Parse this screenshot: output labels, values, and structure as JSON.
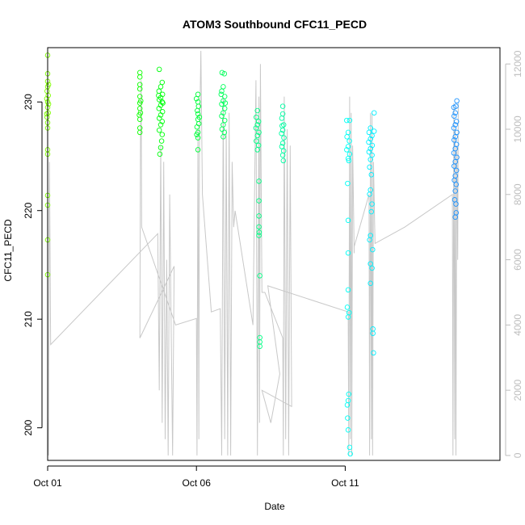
{
  "chart_data": {
    "type": "scatter",
    "title": "ATOM3 Southbound CFC11_PECD",
    "xlabel": "Date",
    "ylabel": "CFC11_PECD",
    "x_axis": {
      "range_days": [
        0.0,
        15.2
      ],
      "ticks": [
        {
          "value": 0,
          "label": "Oct 01"
        },
        {
          "value": 5,
          "label": "Oct 06"
        },
        {
          "value": 10,
          "label": "Oct 11"
        }
      ]
    },
    "y_axis": {
      "range": [
        197.0,
        235.0
      ],
      "ticks": [
        200,
        210,
        220,
        230
      ]
    },
    "y2_axis": {
      "range": [
        -150,
        12500
      ],
      "ticks": [
        0,
        2000,
        4000,
        6000,
        8000,
        10000,
        12000
      ],
      "color": "#bdbdbd"
    },
    "grid": false,
    "colors": {
      "altitude_line": "#c8c8c8",
      "point_scale": [
        "#7fff00",
        "#00ff00",
        "#00ff7f",
        "#00ffff",
        "#1e90ff"
      ]
    },
    "clusters": [
      {
        "day": 0.0,
        "points": [
          [
            0.0,
            234.3
          ],
          [
            0.0,
            232.6
          ],
          [
            0.0,
            231.9
          ],
          [
            0.0,
            231.4
          ],
          [
            -0.02,
            231.0
          ],
          [
            0.02,
            230.6
          ],
          [
            0.0,
            230.0
          ],
          [
            0.0,
            229.5
          ],
          [
            0.02,
            229.0
          ],
          [
            -0.02,
            228.6
          ],
          [
            0.0,
            228.1
          ],
          [
            0.0,
            227.6
          ],
          [
            0.0,
            225.6
          ],
          [
            0.0,
            225.2
          ],
          [
            0.0,
            221.4
          ],
          [
            0.0,
            220.5
          ],
          [
            0.0,
            217.3
          ],
          [
            0.0,
            214.1
          ],
          [
            0.03,
            231.6
          ],
          [
            0.03,
            229.8
          ],
          [
            -0.03,
            230.3
          ],
          [
            -0.03,
            228.9
          ]
        ]
      },
      {
        "day": 3.1,
        "points": [
          [
            0.0,
            232.7
          ],
          [
            0.0,
            232.3
          ],
          [
            0.0,
            231.6
          ],
          [
            0.0,
            231.2
          ],
          [
            0.0,
            230.5
          ],
          [
            0.0,
            229.9
          ],
          [
            0.0,
            229.4
          ],
          [
            0.02,
            229.0
          ],
          [
            -0.02,
            228.8
          ],
          [
            0.0,
            228.4
          ],
          [
            0.0,
            227.6
          ],
          [
            0.0,
            227.2
          ],
          [
            0.03,
            230.1
          ]
        ]
      },
      {
        "day": 3.8,
        "points": [
          [
            -0.05,
            233.0
          ],
          [
            0.05,
            231.8
          ],
          [
            0.0,
            231.4
          ],
          [
            -0.06,
            231.0
          ],
          [
            0.06,
            230.7
          ],
          [
            0.0,
            230.4
          ],
          [
            -0.05,
            230.2
          ],
          [
            0.05,
            230.0
          ],
          [
            0.0,
            229.7
          ],
          [
            -0.06,
            229.4
          ],
          [
            0.06,
            229.1
          ],
          [
            0.0,
            228.8
          ],
          [
            -0.05,
            228.5
          ],
          [
            0.05,
            228.2
          ],
          [
            0.0,
            227.9
          ],
          [
            -0.05,
            227.4
          ],
          [
            0.05,
            227.0
          ],
          [
            0.0,
            225.8
          ],
          [
            -0.03,
            225.2
          ],
          [
            0.03,
            226.4
          ],
          [
            0.07,
            229.9
          ],
          [
            -0.07,
            230.6
          ]
        ]
      },
      {
        "day": 5.05,
        "points": [
          [
            0.0,
            230.7
          ],
          [
            0.0,
            230.0
          ],
          [
            0.02,
            229.6
          ],
          [
            -0.02,
            229.2
          ],
          [
            0.0,
            228.9
          ],
          [
            0.0,
            228.4
          ],
          [
            0.03,
            228.0
          ],
          [
            -0.03,
            227.7
          ],
          [
            0.0,
            227.2
          ],
          [
            0.0,
            226.7
          ],
          [
            0.0,
            225.6
          ],
          [
            -0.05,
            230.3
          ],
          [
            0.05,
            228.6
          ],
          [
            -0.04,
            227.0
          ]
        ]
      },
      {
        "day": 5.9,
        "points": [
          [
            -0.04,
            232.7
          ],
          [
            0.04,
            232.6
          ],
          [
            0.0,
            231.4
          ],
          [
            -0.05,
            231.0
          ],
          [
            0.05,
            230.5
          ],
          [
            0.0,
            230.1
          ],
          [
            -0.05,
            229.8
          ],
          [
            0.05,
            229.4
          ],
          [
            0.0,
            229.0
          ],
          [
            -0.05,
            228.7
          ],
          [
            0.05,
            228.3
          ],
          [
            0.0,
            227.9
          ],
          [
            -0.04,
            227.5
          ],
          [
            0.04,
            227.2
          ],
          [
            0.0,
            226.8
          ],
          [
            0.07,
            229.9
          ],
          [
            -0.07,
            230.7
          ]
        ]
      },
      {
        "day": 7.05,
        "points": [
          [
            0.0,
            229.2
          ],
          [
            -0.04,
            228.6
          ],
          [
            0.04,
            228.2
          ],
          [
            0.0,
            227.9
          ],
          [
            -0.05,
            227.6
          ],
          [
            0.05,
            227.2
          ],
          [
            0.0,
            226.9
          ],
          [
            -0.04,
            226.4
          ],
          [
            0.04,
            226.0
          ],
          [
            0.0,
            225.6
          ],
          [
            0.05,
            222.7
          ],
          [
            0.05,
            220.9
          ],
          [
            0.05,
            219.5
          ],
          [
            0.05,
            218.5
          ],
          [
            0.06,
            218.0
          ],
          [
            0.05,
            217.7
          ],
          [
            0.08,
            214.0
          ],
          [
            0.08,
            208.3
          ],
          [
            0.08,
            207.9
          ],
          [
            0.08,
            207.5
          ]
        ]
      },
      {
        "day": 7.9,
        "points": [
          [
            0.0,
            229.6
          ],
          [
            0.0,
            228.9
          ],
          [
            -0.03,
            228.5
          ],
          [
            0.03,
            227.9
          ],
          [
            0.0,
            227.4
          ],
          [
            -0.04,
            227.1
          ],
          [
            0.04,
            226.7
          ],
          [
            0.0,
            226.2
          ],
          [
            -0.03,
            225.9
          ],
          [
            0.03,
            225.5
          ],
          [
            0.0,
            225.1
          ],
          [
            0.02,
            224.6
          ],
          [
            -0.02,
            227.8
          ]
        ]
      },
      {
        "day": 10.1,
        "points": [
          [
            -0.05,
            228.3
          ],
          [
            0.05,
            228.3
          ],
          [
            0.0,
            227.2
          ],
          [
            -0.04,
            226.8
          ],
          [
            0.04,
            226.4
          ],
          [
            0.0,
            225.9
          ],
          [
            -0.05,
            225.6
          ],
          [
            0.05,
            225.2
          ],
          [
            0.0,
            224.8
          ],
          [
            0.02,
            224.6
          ],
          [
            -0.02,
            222.5
          ],
          [
            0.0,
            219.1
          ],
          [
            0.0,
            216.1
          ],
          [
            0.0,
            212.7
          ],
          [
            -0.03,
            211.1
          ],
          [
            0.03,
            210.6
          ],
          [
            0.0,
            210.2
          ],
          [
            0.02,
            203.1
          ],
          [
            0.0,
            202.5
          ],
          [
            -0.03,
            202.1
          ],
          [
            -0.02,
            200.9
          ],
          [
            0.0,
            199.8
          ],
          [
            0.05,
            198.2
          ],
          [
            0.07,
            197.6
          ]
        ]
      },
      {
        "day": 10.85,
        "points": [
          [
            0.0,
            227.6
          ],
          [
            -0.05,
            227.2
          ],
          [
            0.05,
            226.9
          ],
          [
            0.0,
            226.6
          ],
          [
            -0.06,
            226.3
          ],
          [
            0.06,
            226.0
          ],
          [
            0.0,
            225.7
          ],
          [
            -0.05,
            225.4
          ],
          [
            0.05,
            225.1
          ],
          [
            0.0,
            224.7
          ],
          [
            -0.03,
            224.0
          ],
          [
            0.03,
            223.3
          ],
          [
            0.0,
            221.9
          ],
          [
            -0.03,
            221.5
          ],
          [
            0.05,
            220.6
          ],
          [
            0.03,
            219.9
          ],
          [
            0.0,
            217.7
          ],
          [
            -0.03,
            217.3
          ],
          [
            0.07,
            216.4
          ],
          [
            0.0,
            215.1
          ],
          [
            0.05,
            214.7
          ],
          [
            0.0,
            213.3
          ],
          [
            0.08,
            209.1
          ],
          [
            0.08,
            208.7
          ],
          [
            0.1,
            206.9
          ],
          [
            0.12,
            229.0
          ],
          [
            0.12,
            227.3
          ]
        ]
      },
      {
        "day": 13.7,
        "points": [
          [
            -0.05,
            229.5
          ],
          [
            0.05,
            230.1
          ],
          [
            0.02,
            229.6
          ],
          [
            0.0,
            229.0
          ],
          [
            -0.04,
            228.7
          ],
          [
            0.04,
            228.2
          ],
          [
            0.0,
            227.9
          ],
          [
            -0.05,
            227.6
          ],
          [
            0.05,
            227.2
          ],
          [
            0.0,
            226.8
          ],
          [
            -0.04,
            226.5
          ],
          [
            0.04,
            226.1
          ],
          [
            0.0,
            225.7
          ],
          [
            -0.05,
            225.3
          ],
          [
            0.05,
            224.9
          ],
          [
            0.0,
            224.5
          ],
          [
            -0.04,
            224.1
          ],
          [
            0.04,
            223.7
          ],
          [
            0.0,
            223.2
          ],
          [
            -0.03,
            222.8
          ],
          [
            0.03,
            222.4
          ],
          [
            0.0,
            221.8
          ],
          [
            -0.02,
            221.0
          ],
          [
            0.02,
            220.6
          ],
          [
            0.0,
            219.4
          ],
          [
            0.03,
            219.8
          ]
        ]
      }
    ],
    "altitude_path": [
      [
        0.0,
        1200
      ],
      [
        0.03,
        0
      ],
      [
        0.06,
        9000
      ],
      [
        0.1,
        3400
      ],
      [
        3.7,
        6800
      ],
      [
        3.75,
        2000
      ],
      [
        3.8,
        9500
      ],
      [
        3.85,
        1000
      ],
      [
        3.9,
        9000
      ],
      [
        3.95,
        500
      ],
      [
        4.0,
        6000
      ],
      [
        4.05,
        0
      ],
      [
        4.1,
        8000
      ],
      [
        4.2,
        0
      ],
      [
        4.25,
        5800
      ],
      [
        3.1,
        3600
      ],
      [
        3.12,
        9500
      ],
      [
        3.14,
        11500
      ],
      [
        3.16,
        7000
      ],
      [
        4.3,
        4000
      ],
      [
        5.0,
        4200
      ],
      [
        5.02,
        0
      ],
      [
        5.05,
        10000
      ],
      [
        5.08,
        500
      ],
      [
        5.1,
        9500
      ],
      [
        5.15,
        12400
      ],
      [
        5.2,
        8000
      ],
      [
        5.5,
        4400
      ],
      [
        5.8,
        4500
      ],
      [
        5.85,
        0
      ],
      [
        5.9,
        11000
      ],
      [
        5.95,
        500
      ],
      [
        6.0,
        10000
      ],
      [
        6.05,
        0
      ],
      [
        6.1,
        10500
      ],
      [
        6.15,
        0
      ],
      [
        6.2,
        9000
      ],
      [
        6.25,
        7000
      ],
      [
        6.3,
        7500
      ],
      [
        6.9,
        4000
      ],
      [
        7.0,
        11500
      ],
      [
        7.05,
        0
      ],
      [
        7.1,
        11000
      ],
      [
        7.12,
        1000
      ],
      [
        7.15,
        12000
      ],
      [
        7.2,
        5000
      ],
      [
        7.3,
        5000
      ],
      [
        7.9,
        3600
      ],
      [
        7.92,
        0
      ],
      [
        7.95,
        11000
      ],
      [
        8.0,
        500
      ],
      [
        8.05,
        10000
      ],
      [
        8.1,
        0
      ],
      [
        8.15,
        9500
      ],
      [
        8.2,
        1500
      ],
      [
        7.2,
        2000
      ],
      [
        7.5,
        1000
      ],
      [
        7.8,
        2500
      ],
      [
        7.4,
        5200
      ],
      [
        10.1,
        4400
      ],
      [
        10.12,
        0
      ],
      [
        10.15,
        11000
      ],
      [
        10.17,
        500
      ],
      [
        10.2,
        10500
      ],
      [
        10.22,
        0
      ],
      [
        10.25,
        9500
      ],
      [
        10.3,
        6200
      ],
      [
        10.3,
        6400
      ],
      [
        10.8,
        8000
      ],
      [
        10.82,
        0
      ],
      [
        10.85,
        10500
      ],
      [
        10.88,
        500
      ],
      [
        10.9,
        10500
      ],
      [
        10.92,
        0
      ],
      [
        10.95,
        9000
      ],
      [
        11.0,
        6500
      ],
      [
        12.0,
        7000
      ],
      [
        13.6,
        8000
      ],
      [
        13.62,
        0
      ],
      [
        13.65,
        10800
      ],
      [
        13.68,
        500
      ],
      [
        13.7,
        10000
      ],
      [
        13.72,
        0
      ],
      [
        13.75,
        9500
      ],
      [
        13.78,
        6000
      ],
      [
        13.8,
        10800
      ]
    ]
  }
}
